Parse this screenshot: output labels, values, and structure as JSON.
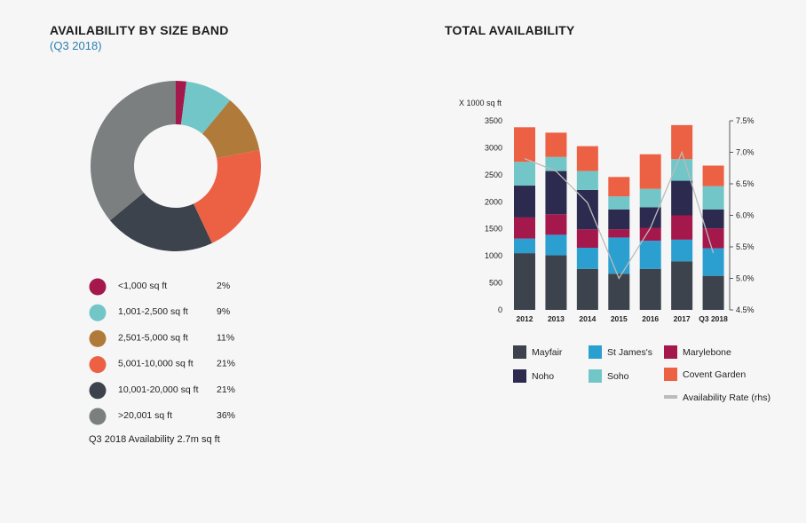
{
  "left": {
    "title": "AVAILABILITY BY SIZE BAND",
    "subtitle": "(Q3 2018)",
    "note": "Q3 2018 Availability 2.7m sq ft"
  },
  "right": {
    "title": "TOTAL AVAILABILITY"
  },
  "chart_data": [
    {
      "type": "pie",
      "donut": true,
      "title": "AVAILABILITY BY SIZE BAND",
      "subtitle": "(Q3 2018)",
      "slices": [
        {
          "label": "<1,000 sq ft",
          "value": 2,
          "value_label": "2%",
          "color": "#a4184b"
        },
        {
          "label": "1,001-2,500 sq ft",
          "value": 9,
          "value_label": "9%",
          "color": "#72c6c8"
        },
        {
          "label": "2,501-5,000 sq ft",
          "value": 11,
          "value_label": "11%",
          "color": "#b07a3b"
        },
        {
          "label": "5,001-10,000 sq ft",
          "value": 21,
          "value_label": "21%",
          "color": "#ec6144"
        },
        {
          "label": "10,001-20,000 sq ft",
          "value": 21,
          "value_label": "21%",
          "color": "#3c434c"
        },
        {
          "label": ">20,001 sq ft",
          "value": 36,
          "value_label": "36%",
          "color": "#7b7f80"
        }
      ],
      "legend_position": "bottom"
    },
    {
      "type": "bar",
      "stacked": true,
      "title": "TOTAL AVAILABILITY",
      "ylabel": "X 1000 sq ft",
      "ylim": [
        0,
        3500
      ],
      "yticks": [
        0,
        500,
        1000,
        1500,
        2000,
        2500,
        3000,
        3500
      ],
      "y2lim": [
        4.5,
        7.5
      ],
      "y2ticks": [
        "4.5%",
        "5.0%",
        "5.5%",
        "6.0%",
        "6.5%",
        "7.0%",
        "7.5%"
      ],
      "categories": [
        "2012",
        "2013",
        "2014",
        "2015",
        "2016",
        "2017",
        "Q3 2018"
      ],
      "series": [
        {
          "name": "Mayfair",
          "color": "#3c434c",
          "values": [
            1050,
            1010,
            760,
            670,
            760,
            900,
            630
          ]
        },
        {
          "name": "St James's",
          "color": "#2c9fd1",
          "values": [
            270,
            380,
            390,
            670,
            520,
            400,
            510
          ]
        },
        {
          "name": "Marylebone",
          "color": "#a4184b",
          "values": [
            390,
            380,
            340,
            150,
            240,
            450,
            370
          ]
        },
        {
          "name": "Noho",
          "color": "#2c2a4f",
          "values": [
            590,
            800,
            730,
            370,
            380,
            640,
            350
          ]
        },
        {
          "name": "Soho",
          "color": "#72c6c8",
          "values": [
            440,
            260,
            350,
            240,
            340,
            400,
            430
          ]
        },
        {
          "name": "Covent Garden",
          "color": "#ec6144",
          "values": [
            640,
            450,
            460,
            360,
            640,
            630,
            380
          ]
        }
      ],
      "line_series": {
        "name": "Availability Rate (rhs)",
        "color": "#bbbbbb",
        "values": [
          6.9,
          6.7,
          6.2,
          5.0,
          5.8,
          7.0,
          5.4
        ]
      },
      "legend_position": "bottom"
    }
  ]
}
